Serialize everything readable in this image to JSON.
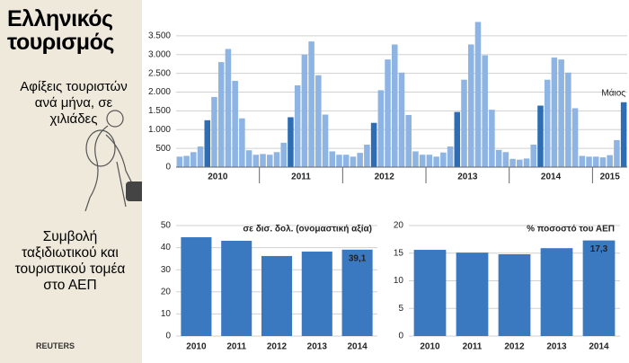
{
  "panel": {
    "title": "Ελληνικός τουρισμός",
    "caption_arrivals": "Αφίξεις τουριστών ανά μήνα, σε χιλιάδες",
    "caption_gdp": "Συμβολή ταξιδιωτικού και τουριστικού τομέα στο ΑΕΠ",
    "source": "REUTERS"
  },
  "chart_data": [
    {
      "type": "grouped-bar",
      "ylim": [
        0,
        4000
      ],
      "yticks": [
        0,
        500,
        {
          "value": 1000,
          "label": "1.000"
        },
        {
          "value": 1500,
          "label": "1.500"
        },
        {
          "value": 2000,
          "label": "2.000"
        },
        {
          "value": 2500,
          "label": "2.500"
        },
        {
          "value": 3000,
          "label": "3.000"
        },
        {
          "value": 3500,
          "label": "3.500"
        }
      ],
      "grid": true,
      "annotation": "Μάιος",
      "groups": [
        {
          "label": "2010",
          "values": [
            280,
            300,
            400,
            550,
            1250,
            1870,
            2800,
            3150,
            2300,
            1300,
            450,
            330
          ],
          "colors": [
            "#8db4e2",
            "#8db4e2",
            "#8db4e2",
            "#8db4e2",
            "#2e6db4",
            "#8db4e2",
            "#8db4e2",
            "#8db4e2",
            "#8db4e2",
            "#8db4e2",
            "#8db4e2",
            "#8db4e2"
          ]
        },
        {
          "label": "2011",
          "values": [
            350,
            330,
            400,
            650,
            1330,
            2180,
            3000,
            3350,
            2450,
            1400,
            420,
            330
          ],
          "colors": [
            "#8db4e2",
            "#8db4e2",
            "#8db4e2",
            "#8db4e2",
            "#2e6db4",
            "#8db4e2",
            "#8db4e2",
            "#8db4e2",
            "#8db4e2",
            "#8db4e2",
            "#8db4e2",
            "#8db4e2"
          ]
        },
        {
          "label": "2012",
          "values": [
            330,
            280,
            380,
            600,
            1180,
            2050,
            2870,
            3270,
            2520,
            1390,
            420,
            330
          ],
          "colors": [
            "#8db4e2",
            "#8db4e2",
            "#8db4e2",
            "#8db4e2",
            "#2e6db4",
            "#8db4e2",
            "#8db4e2",
            "#8db4e2",
            "#8db4e2",
            "#8db4e2",
            "#8db4e2",
            "#8db4e2"
          ]
        },
        {
          "label": "2013",
          "values": [
            330,
            280,
            390,
            550,
            1470,
            2330,
            3270,
            3870,
            2980,
            1530,
            460,
            400
          ],
          "colors": [
            "#8db4e2",
            "#8db4e2",
            "#8db4e2",
            "#8db4e2",
            "#2e6db4",
            "#8db4e2",
            "#8db4e2",
            "#8db4e2",
            "#8db4e2",
            "#8db4e2",
            "#8db4e2",
            "#8db4e2"
          ]
        },
        {
          "label": "2014",
          "values": [
            220,
            200,
            230,
            600,
            1640,
            2330,
            2920,
            2870,
            2520,
            1570,
            300,
            280
          ],
          "colors": [
            "#8db4e2",
            "#8db4e2",
            "#8db4e2",
            "#8db4e2",
            "#2e6db4",
            "#8db4e2",
            "#8db4e2",
            "#8db4e2",
            "#8db4e2",
            "#8db4e2",
            "#8db4e2",
            "#8db4e2"
          ]
        },
        {
          "label": "2015",
          "values": [
            280,
            260,
            320,
            720,
            1730
          ],
          "colors": [
            "#8db4e2",
            "#8db4e2",
            "#8db4e2",
            "#8db4e2",
            "#2e6db4"
          ]
        }
      ]
    },
    {
      "type": "bar",
      "subtitle": "σε δισ. δολ. (ονομαστική αξία)",
      "categories": [
        "2010",
        "2011",
        "2012",
        "2013",
        "2014"
      ],
      "values": [
        44.7,
        43.1,
        36.2,
        38.2,
        39.1
      ],
      "value_labels": [
        null,
        null,
        null,
        null,
        "39,1"
      ],
      "color": "#3a78c0",
      "ylim": [
        0,
        50
      ],
      "yticks": [
        0,
        10,
        20,
        30,
        40,
        50
      ],
      "grid": true
    },
    {
      "type": "bar",
      "subtitle": "% ποσοστό του ΑΕΠ",
      "categories": [
        "2010",
        "2011",
        "2012",
        "2013",
        "2014"
      ],
      "values": [
        15.6,
        15.1,
        14.8,
        15.9,
        17.3
      ],
      "value_labels": [
        null,
        null,
        null,
        null,
        "17,3"
      ],
      "color": "#3a78c0",
      "ylim": [
        0,
        20
      ],
      "yticks": [
        0,
        5,
        10,
        15,
        20
      ],
      "grid": true
    }
  ]
}
